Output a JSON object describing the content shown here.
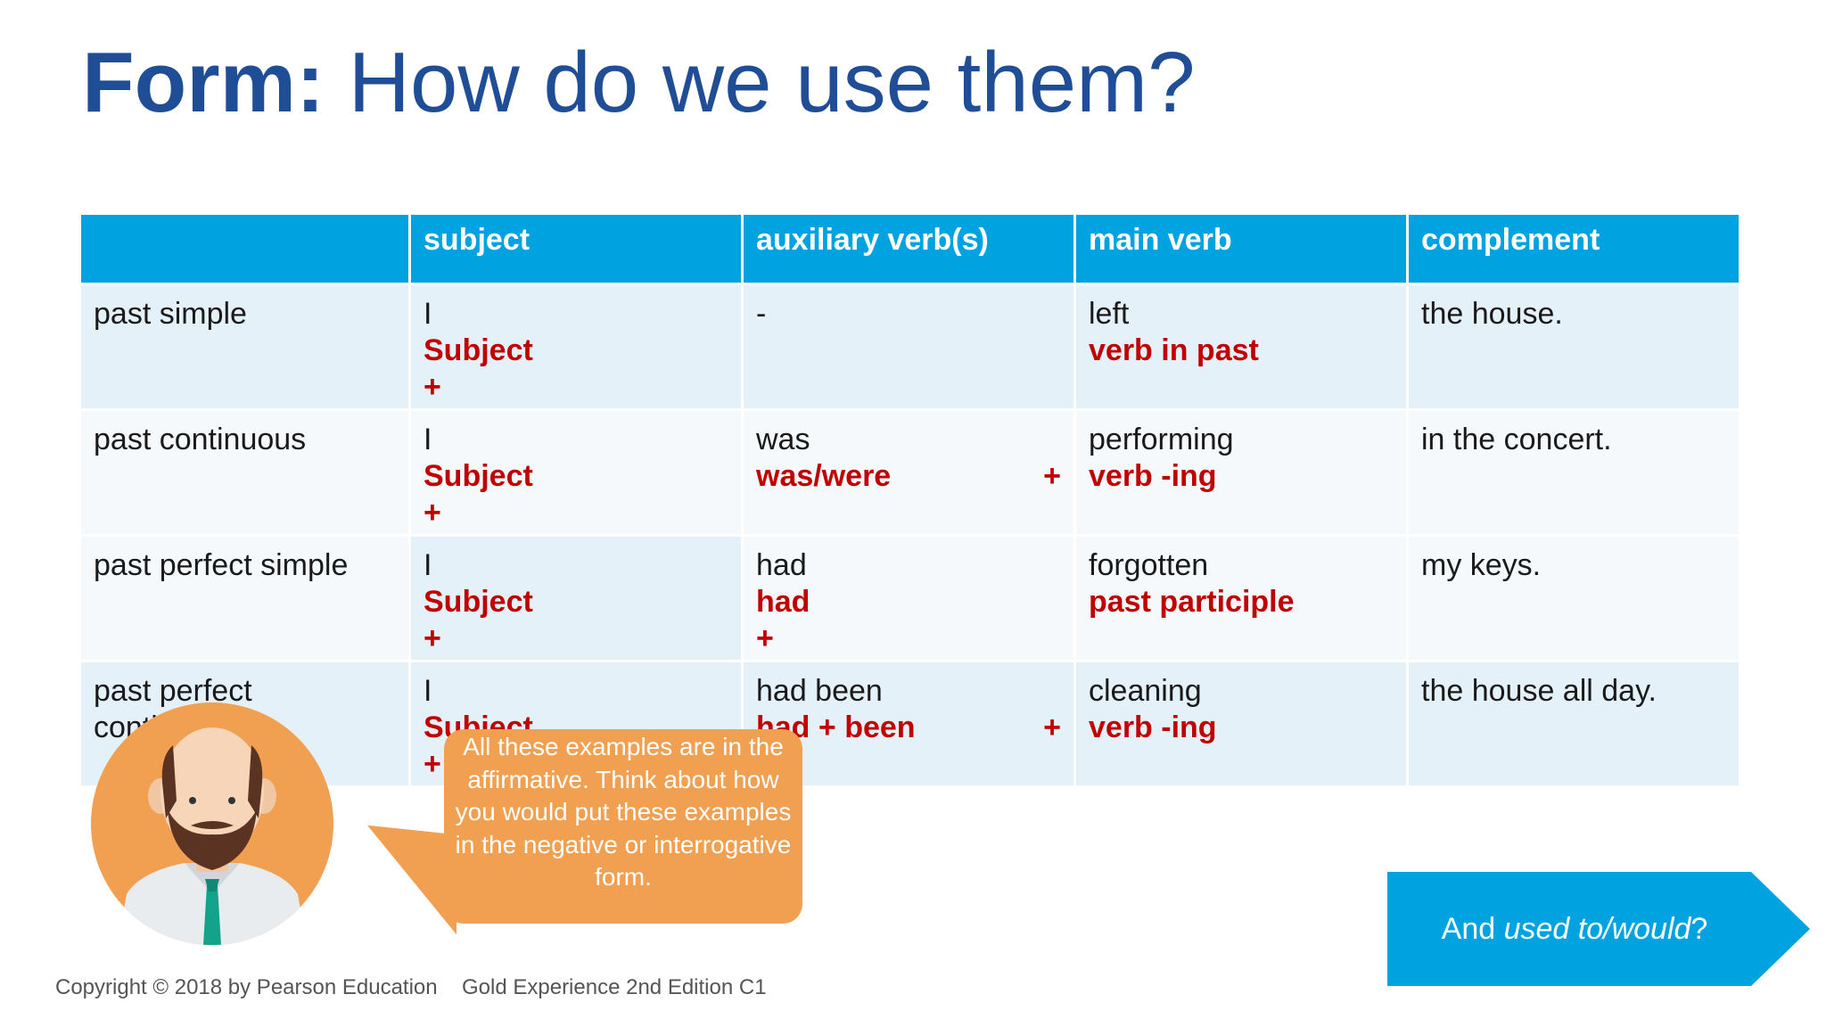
{
  "title": {
    "bold": "Form:",
    "rest": "How do we use them?"
  },
  "table": {
    "headers": [
      "",
      "subject",
      "auxiliary verb(s)",
      "main verb",
      "complement"
    ],
    "rows": [
      {
        "tense": "past simple",
        "subject": {
          "example": "I",
          "pattern": "Subject",
          "plus": "+"
        },
        "aux": {
          "example": "-"
        },
        "main": {
          "example": "left",
          "pattern": "verb in past"
        },
        "complement": "the house."
      },
      {
        "tense": "past continuous",
        "subject": {
          "example": "I",
          "pattern": "Subject",
          "plus": "+"
        },
        "aux": {
          "example": "was",
          "pattern": "was/were",
          "plus": "+"
        },
        "main": {
          "example": "performing",
          "pattern": "verb -ing"
        },
        "complement": "in the concert."
      },
      {
        "tense": "past perfect simple",
        "subject": {
          "example": "I",
          "pattern": "Subject",
          "plus": "+"
        },
        "aux": {
          "example": "had",
          "pattern": "had",
          "plus": "+"
        },
        "main": {
          "example": "forgotten",
          "pattern": "past participle"
        },
        "complement": "my keys."
      },
      {
        "tense": "past perfect continuous",
        "subject": {
          "example": "I",
          "pattern": "Subject",
          "plus": "+"
        },
        "aux": {
          "example": "had been",
          "pattern": "had + been",
          "plus": "+"
        },
        "main": {
          "example": "cleaning",
          "pattern": "verb -ing"
        },
        "complement": "the house all day."
      }
    ]
  },
  "bubble": {
    "text": "All these examples are in the affirmative. Think about how you would put these examples in the negative or interrogative form."
  },
  "next_button": {
    "prefix": "And ",
    "italic": "used to/would",
    "suffix": "?"
  },
  "footer": {
    "copyright": "Copyright © 2018 by Pearson Education",
    "edition": "Gold Experience 2nd Edition C1"
  },
  "colors": {
    "title": "#1f4e96",
    "header": "#00a3e0",
    "pattern": "#c00000",
    "bubble": "#f0a050",
    "button": "#00a3e0"
  },
  "icons": {
    "avatar": "teacher-avatar-icon"
  }
}
